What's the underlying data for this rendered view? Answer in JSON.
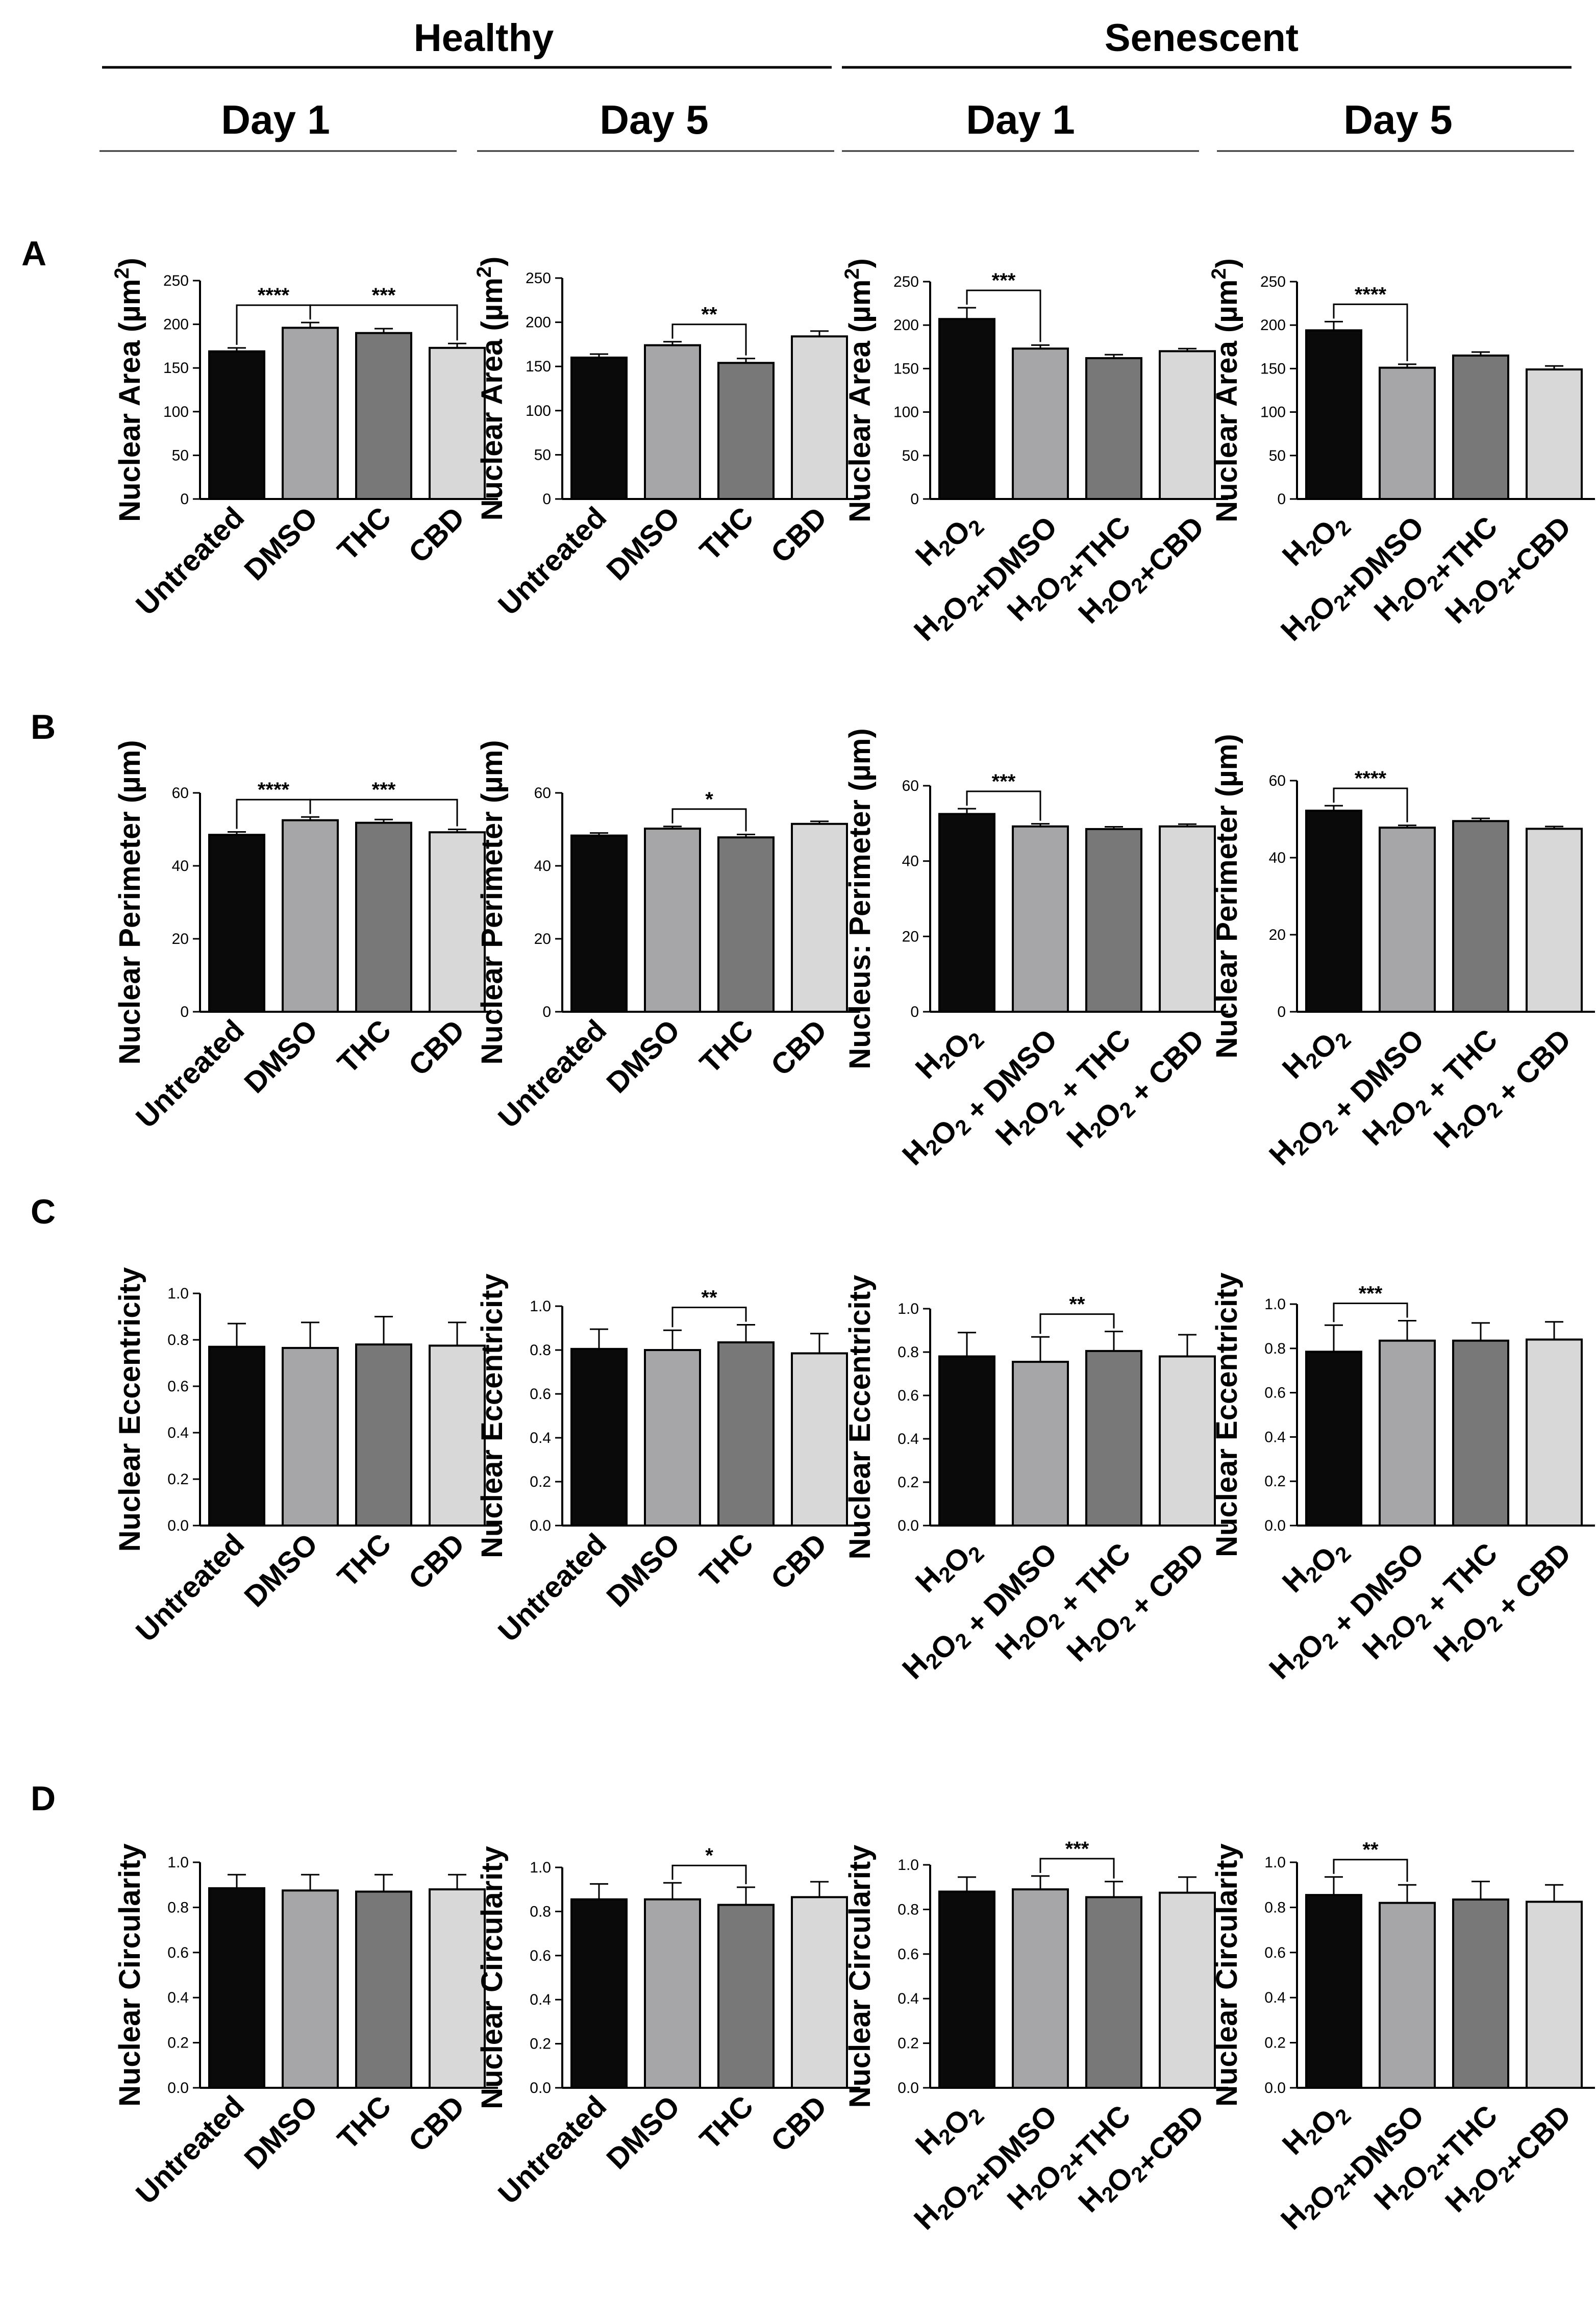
{
  "header": {
    "groups": [
      {
        "label": "Healthy",
        "days": [
          "Day 1",
          "Day 5"
        ]
      },
      {
        "label": "Senescent",
        "days": [
          "Day 1",
          "Day 5"
        ]
      }
    ]
  },
  "colors": {
    "bars": [
      "#0a0a0a",
      "#a6a6a8",
      "#787878",
      "#d8d8d8"
    ],
    "stroke": "#000000"
  },
  "rows": [
    {
      "label": "A"
    },
    {
      "label": "B"
    },
    {
      "label": "C"
    },
    {
      "label": "D"
    }
  ],
  "chart_data": [
    {
      "id": "A1",
      "type": "bar",
      "row_label": "A",
      "title": "",
      "ylabel": "Nuclear Area (µm²)",
      "xlabel": "",
      "ylim": [
        0,
        250
      ],
      "yticks": [
        0,
        50,
        100,
        150,
        200,
        250
      ],
      "tick_labels": [
        "0",
        "50",
        "100",
        "150",
        "200",
        "250"
      ],
      "categories": [
        "Untreated",
        "DMSO",
        "THC",
        "CBD"
      ],
      "values": [
        169,
        196,
        190,
        173
      ],
      "errors": [
        4,
        6,
        5,
        5
      ],
      "annotations": [
        {
          "from": 0,
          "to": 1,
          "label": "****"
        },
        {
          "from": 1,
          "to": 3,
          "label": "***"
        }
      ]
    },
    {
      "id": "A2",
      "type": "bar",
      "row_label": "A",
      "title": "",
      "ylabel": "Nuclear Area (µm²)",
      "xlabel": "",
      "ylim": [
        0,
        250
      ],
      "yticks": [
        0,
        50,
        100,
        150,
        200,
        250
      ],
      "tick_labels": [
        "0",
        "50",
        "100",
        "150",
        "200",
        "250"
      ],
      "categories": [
        "Untreated",
        "DMSO",
        "THC",
        "CBD"
      ],
      "values": [
        160,
        174,
        154,
        184
      ],
      "errors": [
        4,
        4,
        5,
        6
      ],
      "annotations": [
        {
          "from": 1,
          "to": 2,
          "label": "**"
        }
      ]
    },
    {
      "id": "A3",
      "type": "bar",
      "row_label": "A",
      "title": "",
      "ylabel": "Nuclear Area (µm²)",
      "xlabel": "",
      "ylim": [
        0,
        250
      ],
      "yticks": [
        0,
        50,
        100,
        150,
        200,
        250
      ],
      "tick_labels": [
        "0",
        "50",
        "100",
        "150",
        "200",
        "250"
      ],
      "categories": [
        "H₂O₂",
        "H₂O₂+DMSO",
        "H₂O₂+THC",
        "H₂O₂+CBD"
      ],
      "values": [
        207,
        173,
        162,
        170
      ],
      "errors": [
        13,
        4,
        4,
        3
      ],
      "annotations": [
        {
          "from": 0,
          "to": 1,
          "label": "***"
        }
      ]
    },
    {
      "id": "A4",
      "type": "bar",
      "row_label": "A",
      "title": "",
      "ylabel": "Nuclear Area (µm²)",
      "xlabel": "",
      "ylim": [
        0,
        250
      ],
      "yticks": [
        0,
        50,
        100,
        150,
        200,
        250
      ],
      "tick_labels": [
        "0",
        "50",
        "100",
        "150",
        "200",
        "250"
      ],
      "categories": [
        "H₂O₂",
        "H₂O₂+DMSO",
        "H₂O₂+THC",
        "H₂O₂+CBD"
      ],
      "values": [
        194,
        151,
        165,
        149
      ],
      "errors": [
        10,
        4,
        4,
        4
      ],
      "annotations": [
        {
          "from": 0,
          "to": 1,
          "label": "****"
        }
      ]
    },
    {
      "id": "B1",
      "type": "bar",
      "row_label": "B",
      "title": "",
      "ylabel": "Nuclear Perimeter (µm)",
      "xlabel": "",
      "ylim": [
        0,
        60
      ],
      "yticks": [
        0,
        20,
        40,
        60
      ],
      "tick_labels": [
        "0",
        "20",
        "40",
        "60"
      ],
      "categories": [
        "Untreated",
        "DMSO",
        "THC",
        "CBD"
      ],
      "values": [
        48.5,
        52.5,
        51.8,
        49.2
      ],
      "errors": [
        0.8,
        0.9,
        0.9,
        0.8
      ],
      "annotations": [
        {
          "from": 0,
          "to": 1,
          "label": "****"
        },
        {
          "from": 1,
          "to": 3,
          "label": "***"
        }
      ]
    },
    {
      "id": "B2",
      "type": "bar",
      "row_label": "B",
      "title": "",
      "ylabel": "Nuclear Perimeter (µm)",
      "xlabel": "",
      "ylim": [
        0,
        60
      ],
      "yticks": [
        0,
        20,
        40,
        60
      ],
      "tick_labels": [
        "0",
        "20",
        "40",
        "60"
      ],
      "categories": [
        "Untreated",
        "DMSO",
        "THC",
        "CBD"
      ],
      "values": [
        48.3,
        50.2,
        47.8,
        51.5
      ],
      "errors": [
        0.7,
        0.6,
        0.8,
        0.7
      ],
      "annotations": [
        {
          "from": 1,
          "to": 2,
          "label": "*"
        }
      ]
    },
    {
      "id": "B3",
      "type": "bar",
      "row_label": "B",
      "title": "",
      "ylabel": "Nucleus: Perimeter (µm)",
      "xlabel": "",
      "ylim": [
        0,
        60
      ],
      "yticks": [
        0,
        20,
        40,
        60
      ],
      "tick_labels": [
        "0",
        "20",
        "40",
        "60"
      ],
      "categories": [
        "H₂O₂",
        "H₂O₂ + DMSO",
        "H₂O₂ + THC",
        "H₂O₂ + CBD"
      ],
      "values": [
        52.5,
        49.2,
        48.5,
        49.2
      ],
      "errors": [
        1.4,
        0.7,
        0.6,
        0.6
      ],
      "annotations": [
        {
          "from": 0,
          "to": 1,
          "label": "***"
        }
      ]
    },
    {
      "id": "B4",
      "type": "bar",
      "row_label": "B",
      "title": "",
      "ylabel": "Nuclear Perimeter (µm)",
      "xlabel": "",
      "ylim": [
        0,
        60
      ],
      "yticks": [
        0,
        20,
        40,
        60
      ],
      "tick_labels": [
        "0",
        "20",
        "40",
        "60"
      ],
      "categories": [
        "H₂O₂",
        "H₂O₂ + DMSO",
        "H₂O₂ + THC",
        "H₂O₂ + CBD"
      ],
      "values": [
        52.2,
        47.8,
        49.5,
        47.5
      ],
      "errors": [
        1.3,
        0.6,
        0.7,
        0.6
      ],
      "annotations": [
        {
          "from": 0,
          "to": 1,
          "label": "****"
        }
      ]
    },
    {
      "id": "C1",
      "type": "bar",
      "row_label": "C",
      "title": "",
      "ylabel": "Nuclear Eccentricity",
      "xlabel": "",
      "ylim": [
        0,
        1.0
      ],
      "yticks": [
        0,
        0.2,
        0.4,
        0.6,
        0.8,
        1.0
      ],
      "tick_labels": [
        "0.0",
        "0.2",
        "0.4",
        "0.6",
        "0.8",
        "1.0"
      ],
      "categories": [
        "Untreated",
        "DMSO",
        "THC",
        "CBD"
      ],
      "values": [
        0.77,
        0.765,
        0.78,
        0.775
      ],
      "errors": [
        0.1,
        0.11,
        0.12,
        0.1
      ],
      "annotations": []
    },
    {
      "id": "C2",
      "type": "bar",
      "row_label": "C",
      "title": "",
      "ylabel": "Nuclear Eccentricity",
      "xlabel": "",
      "ylim": [
        0,
        1.0
      ],
      "yticks": [
        0,
        0.2,
        0.4,
        0.6,
        0.8,
        1.0
      ],
      "tick_labels": [
        "0.0",
        "0.2",
        "0.4",
        "0.6",
        "0.8",
        "1.0"
      ],
      "categories": [
        "Untreated",
        "DMSO",
        "THC",
        "CBD"
      ],
      "values": [
        0.805,
        0.8,
        0.835,
        0.785
      ],
      "errors": [
        0.09,
        0.09,
        0.08,
        0.09
      ],
      "annotations": [
        {
          "from": 1,
          "to": 2,
          "label": "**"
        }
      ]
    },
    {
      "id": "C3",
      "type": "bar",
      "row_label": "C",
      "title": "",
      "ylabel": "Nuclear Eccentricity",
      "xlabel": "",
      "ylim": [
        0,
        1.0
      ],
      "yticks": [
        0,
        0.2,
        0.4,
        0.6,
        0.8,
        1.0
      ],
      "tick_labels": [
        "0.0",
        "0.2",
        "0.4",
        "0.6",
        "0.8",
        "1.0"
      ],
      "categories": [
        "H₂O₂",
        "H₂O₂ + DMSO",
        "H₂O₂ + THC",
        "H₂O₂ + CBD"
      ],
      "values": [
        0.78,
        0.755,
        0.805,
        0.78
      ],
      "errors": [
        0.11,
        0.115,
        0.09,
        0.1
      ],
      "annotations": [
        {
          "from": 1,
          "to": 2,
          "label": "**"
        }
      ]
    },
    {
      "id": "C4",
      "type": "bar",
      "row_label": "C",
      "title": "",
      "ylabel": "Nuclear Eccentricity",
      "xlabel": "",
      "ylim": [
        0,
        1.0
      ],
      "yticks": [
        0,
        0.2,
        0.4,
        0.6,
        0.8,
        1.0
      ],
      "tick_labels": [
        "0.0",
        "0.2",
        "0.4",
        "0.6",
        "0.8",
        "1.0"
      ],
      "categories": [
        "H₂O₂",
        "H₂O₂ + DMSO",
        "H₂O₂ + THC",
        "H₂O₂ + CBD"
      ],
      "values": [
        0.785,
        0.835,
        0.835,
        0.84
      ],
      "errors": [
        0.12,
        0.09,
        0.08,
        0.08
      ],
      "annotations": [
        {
          "from": 0,
          "to": 1,
          "label": "***"
        }
      ]
    },
    {
      "id": "D1",
      "type": "bar",
      "row_label": "D",
      "title": "",
      "ylabel": "Nuclear Circularity",
      "xlabel": "",
      "ylim": [
        0,
        1.0
      ],
      "yticks": [
        0,
        0.2,
        0.4,
        0.6,
        0.8,
        1.0
      ],
      "tick_labels": [
        "0.0",
        "0.2",
        "0.4",
        "0.6",
        "0.8",
        "1.0"
      ],
      "categories": [
        "Untreated",
        "DMSO",
        "THC",
        "CBD"
      ],
      "values": [
        0.885,
        0.875,
        0.87,
        0.88
      ],
      "errors": [
        0.06,
        0.07,
        0.075,
        0.065
      ],
      "annotations": []
    },
    {
      "id": "D2",
      "type": "bar",
      "row_label": "D",
      "title": "",
      "ylabel": "Nuclear Circularity",
      "xlabel": "",
      "ylim": [
        0,
        1.0
      ],
      "yticks": [
        0,
        0.2,
        0.4,
        0.6,
        0.8,
        1.0
      ],
      "tick_labels": [
        "0.0",
        "0.2",
        "0.4",
        "0.6",
        "0.8",
        "1.0"
      ],
      "categories": [
        "Untreated",
        "DMSO",
        "THC",
        "CBD"
      ],
      "values": [
        0.855,
        0.855,
        0.83,
        0.865
      ],
      "errors": [
        0.07,
        0.075,
        0.08,
        0.07
      ],
      "annotations": [
        {
          "from": 1,
          "to": 2,
          "label": "*"
        }
      ]
    },
    {
      "id": "D3",
      "type": "bar",
      "row_label": "D",
      "title": "",
      "ylabel": "Nuclear Circularity",
      "xlabel": "",
      "ylim": [
        0,
        1.0
      ],
      "yticks": [
        0,
        0.2,
        0.4,
        0.6,
        0.8,
        1.0
      ],
      "tick_labels": [
        "0.0",
        "0.2",
        "0.4",
        "0.6",
        "0.8",
        "1.0"
      ],
      "categories": [
        "H₂O₂",
        "H₂O₂+DMSO",
        "H₂O₂+THC",
        "H₂O₂+CBD"
      ],
      "values": [
        0.88,
        0.89,
        0.855,
        0.875
      ],
      "errors": [
        0.065,
        0.06,
        0.07,
        0.07
      ],
      "annotations": [
        {
          "from": 1,
          "to": 2,
          "label": "***"
        }
      ]
    },
    {
      "id": "D4",
      "type": "bar",
      "row_label": "D",
      "title": "",
      "ylabel": "Nuclear Circularity",
      "xlabel": "",
      "ylim": [
        0,
        1.0
      ],
      "yticks": [
        0,
        0.2,
        0.4,
        0.6,
        0.8,
        1.0
      ],
      "tick_labels": [
        "0.0",
        "0.2",
        "0.4",
        "0.6",
        "0.8",
        "1.0"
      ],
      "categories": [
        "H₂O₂",
        "H₂O₂+DMSO",
        "H₂O₂+THC",
        "H₂O₂+CBD"
      ],
      "values": [
        0.855,
        0.82,
        0.835,
        0.825
      ],
      "errors": [
        0.08,
        0.08,
        0.08,
        0.075
      ],
      "annotations": [
        {
          "from": 0,
          "to": 1,
          "label": "**"
        }
      ]
    }
  ]
}
